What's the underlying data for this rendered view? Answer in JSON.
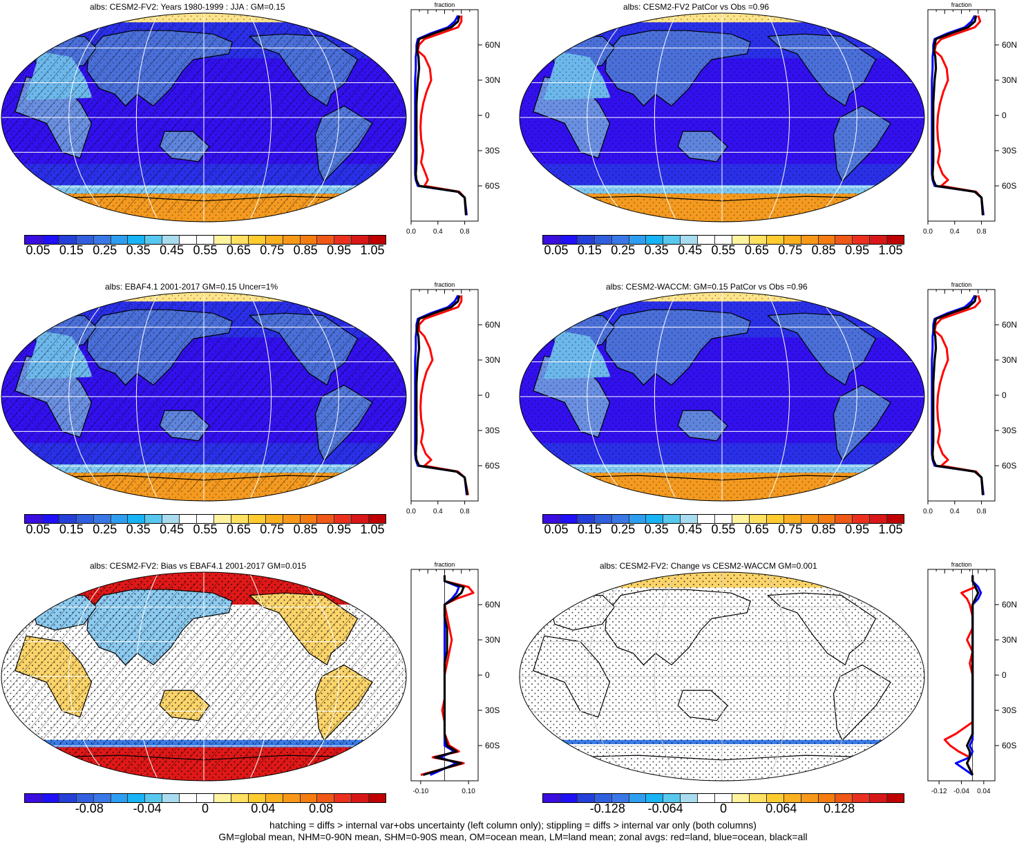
{
  "panels": [
    {
      "title": "albs: CESM2-FV2: Years 1980-1999 : JJA : GM=0.15",
      "kind": "abs",
      "hatch": true,
      "stipple": "light"
    },
    {
      "title": "albs: CESM2-FV2 PatCor vs Obs =0.96",
      "kind": "abs",
      "hatch": false,
      "stipple": "light"
    },
    {
      "title": "albs: EBAF4.1 2001-2017 GM=0.15 Uncer=1%",
      "kind": "abs",
      "hatch": true,
      "stipple": "light"
    },
    {
      "title": "albs: CESM2-WACCM: GM=0.15 PatCor vs Obs =0.96",
      "kind": "abs",
      "hatch": false,
      "stipple": "light"
    },
    {
      "title": "albs: CESM2-FV2: Bias vs EBAF4.1 2001-2017 GM=0.015",
      "kind": "bias",
      "hatch": true,
      "stipple": "heavy"
    },
    {
      "title": "albs: CESM2-FV2: Change vs CESM2-WACCM GM=0.001",
      "kind": "change",
      "hatch": false,
      "stipple": "heavy"
    }
  ],
  "colorbars": {
    "abs": {
      "labels": [
        "0.05",
        "0.15",
        "0.25",
        "0.35",
        "0.45",
        "0.55",
        "0.65",
        "0.75",
        "0.85",
        "0.95",
        "1.05"
      ],
      "colors": [
        "#3a0de0",
        "#2010f5",
        "#2540d8",
        "#3060e0",
        "#3a78e8",
        "#2e9ff0",
        "#18b4f5",
        "#58c8ee",
        "#a8dcee",
        "#ffffff",
        "#ffffff",
        "#fff3a0",
        "#ffe060",
        "#ffcc30",
        "#fbb020",
        "#f89818",
        "#f57c10",
        "#f05818",
        "#eb3020",
        "#d81818",
        "#c00000"
      ]
    },
    "bias": {
      "labels": [
        "-0.08",
        "-0.04",
        "0",
        "0.04",
        "0.08"
      ],
      "colors": [
        "#3a0de0",
        "#2010f5",
        "#2540d8",
        "#3060e0",
        "#3a78e8",
        "#2e9ff0",
        "#18b4f5",
        "#58c8ee",
        "#a8dcee",
        "#ffffff",
        "#ffffff",
        "#fff3a0",
        "#ffe060",
        "#ffcc30",
        "#fbb020",
        "#f89818",
        "#f57c10",
        "#f05818",
        "#eb3020",
        "#d81818",
        "#c00000"
      ]
    },
    "change": {
      "labels": [
        "-0.128",
        "-0.064",
        "0",
        "0.064",
        "0.128"
      ],
      "colors": [
        "#3a0de0",
        "#2010f5",
        "#2540d8",
        "#3060e0",
        "#3a78e8",
        "#2e9ff0",
        "#18b4f5",
        "#58c8ee",
        "#a8dcee",
        "#ffffff",
        "#ffffff",
        "#fff3a0",
        "#ffe060",
        "#ffcc30",
        "#fbb020",
        "#f89818",
        "#f57c10",
        "#f05818",
        "#eb3020",
        "#d81818",
        "#c00000"
      ]
    }
  },
  "zonal": {
    "title": "fraction",
    "lat_labels": [
      "60N",
      "30N",
      "0",
      "30S",
      "60S"
    ],
    "abs_ticks": [
      "0.0",
      "0.4",
      "0.8"
    ],
    "bias_ticks": [
      "-0.10",
      "0.10"
    ],
    "change_ticks": [
      "-0.12",
      "-0.04",
      "0.04"
    ],
    "series_colors": {
      "land": "#ff0000",
      "ocean": "#0000ff",
      "all": "#000000"
    }
  },
  "chart_data": [
    {
      "type": "line",
      "title": "albs: CESM2-FV2: Years 1980-1999 : JJA : GM=0.15",
      "xlabel": "fraction",
      "x_ticks": [
        "0.0",
        "0.4",
        "0.8"
      ],
      "y_ticks": [
        "60N",
        "30N",
        "0",
        "30S",
        "60S"
      ],
      "ylim": [
        -90,
        90
      ],
      "x": [
        -85,
        -70,
        -65,
        -60,
        -55,
        -50,
        -40,
        -30,
        -20,
        -10,
        0,
        10,
        20,
        30,
        40,
        50,
        55,
        60,
        65,
        70,
        75,
        80,
        85
      ],
      "series": [
        {
          "name": "red=land",
          "values": [
            0.82,
            0.8,
            0.72,
            0.2,
            0.25,
            0.22,
            0.15,
            0.18,
            0.15,
            0.14,
            0.15,
            0.18,
            0.23,
            0.3,
            0.28,
            0.2,
            0.1,
            0.12,
            0.2,
            0.45,
            0.7,
            0.75,
            0.75
          ]
        },
        {
          "name": "blue=ocean",
          "values": [
            0.83,
            0.8,
            0.7,
            0.1,
            0.07,
            0.06,
            0.06,
            0.06,
            0.06,
            0.06,
            0.06,
            0.06,
            0.06,
            0.06,
            0.07,
            0.07,
            0.08,
            0.08,
            0.1,
            0.3,
            0.55,
            0.65,
            0.7
          ]
        },
        {
          "name": "black=all",
          "values": [
            0.82,
            0.8,
            0.7,
            0.12,
            0.08,
            0.07,
            0.08,
            0.08,
            0.08,
            0.08,
            0.08,
            0.08,
            0.09,
            0.1,
            0.12,
            0.11,
            0.09,
            0.1,
            0.12,
            0.35,
            0.6,
            0.7,
            0.72
          ]
        }
      ]
    },
    {
      "type": "line",
      "title": "albs: CESM2-FV2 PatCor vs Obs =0.96",
      "xlabel": "fraction",
      "x_ticks": [
        "0.0",
        "0.4",
        "0.8"
      ],
      "y_ticks": [
        "60N",
        "30N",
        "0",
        "30S",
        "60S"
      ],
      "ylim": [
        -90,
        90
      ],
      "x": [
        -85,
        -70,
        -65,
        -60,
        -55,
        -50,
        -40,
        -30,
        -20,
        -10,
        0,
        10,
        20,
        30,
        40,
        50,
        55,
        60,
        65,
        70,
        75,
        80,
        85
      ],
      "series": [
        {
          "name": "red=land",
          "values": [
            0.82,
            0.8,
            0.72,
            0.2,
            0.3,
            0.22,
            0.15,
            0.18,
            0.15,
            0.14,
            0.15,
            0.18,
            0.23,
            0.3,
            0.28,
            0.2,
            0.1,
            0.12,
            0.2,
            0.45,
            0.7,
            0.78,
            0.75
          ]
        },
        {
          "name": "blue=ocean",
          "values": [
            0.83,
            0.8,
            0.7,
            0.1,
            0.07,
            0.06,
            0.06,
            0.06,
            0.06,
            0.06,
            0.06,
            0.06,
            0.06,
            0.06,
            0.07,
            0.07,
            0.08,
            0.08,
            0.1,
            0.3,
            0.55,
            0.65,
            0.7
          ]
        },
        {
          "name": "black=all",
          "values": [
            0.82,
            0.8,
            0.7,
            0.12,
            0.08,
            0.07,
            0.08,
            0.08,
            0.08,
            0.08,
            0.08,
            0.08,
            0.09,
            0.1,
            0.12,
            0.11,
            0.09,
            0.1,
            0.12,
            0.35,
            0.6,
            0.7,
            0.72
          ]
        }
      ]
    },
    {
      "type": "line",
      "title": "albs: EBAF4.1 2001-2017 GM=0.15 Uncer=1%",
      "xlabel": "fraction",
      "x_ticks": [
        "0.0",
        "0.4",
        "0.8"
      ],
      "y_ticks": [
        "60N",
        "30N",
        "0",
        "30S",
        "60S"
      ],
      "ylim": [
        -90,
        90
      ],
      "x": [
        -85,
        -70,
        -65,
        -60,
        -55,
        -50,
        -40,
        -30,
        -20,
        -10,
        0,
        10,
        20,
        30,
        40,
        50,
        55,
        60,
        65,
        70,
        75,
        80,
        85
      ],
      "series": [
        {
          "name": "red=land",
          "values": [
            0.85,
            0.8,
            0.7,
            0.2,
            0.3,
            0.22,
            0.15,
            0.18,
            0.15,
            0.14,
            0.15,
            0.18,
            0.23,
            0.32,
            0.28,
            0.2,
            0.12,
            0.12,
            0.2,
            0.45,
            0.7,
            0.75,
            0.75
          ]
        },
        {
          "name": "blue=ocean",
          "values": [
            0.83,
            0.8,
            0.68,
            0.1,
            0.07,
            0.06,
            0.06,
            0.06,
            0.06,
            0.06,
            0.06,
            0.06,
            0.06,
            0.06,
            0.07,
            0.07,
            0.08,
            0.08,
            0.1,
            0.3,
            0.55,
            0.65,
            0.7
          ]
        },
        {
          "name": "black=all",
          "values": [
            0.84,
            0.8,
            0.68,
            0.12,
            0.08,
            0.07,
            0.08,
            0.08,
            0.08,
            0.08,
            0.08,
            0.08,
            0.09,
            0.1,
            0.12,
            0.11,
            0.09,
            0.1,
            0.12,
            0.35,
            0.6,
            0.7,
            0.72
          ]
        }
      ]
    },
    {
      "type": "line",
      "title": "albs: CESM2-WACCM: GM=0.15 PatCor vs Obs =0.96",
      "xlabel": "fraction",
      "x_ticks": [
        "0.0",
        "0.4",
        "0.8"
      ],
      "y_ticks": [
        "60N",
        "30N",
        "0",
        "30S",
        "60S"
      ],
      "ylim": [
        -90,
        90
      ],
      "x": [
        -85,
        -70,
        -65,
        -60,
        -55,
        -50,
        -40,
        -30,
        -20,
        -10,
        0,
        10,
        20,
        30,
        40,
        50,
        55,
        60,
        65,
        70,
        75,
        80,
        85
      ],
      "series": [
        {
          "name": "red=land",
          "values": [
            0.82,
            0.8,
            0.72,
            0.2,
            0.3,
            0.22,
            0.15,
            0.18,
            0.15,
            0.14,
            0.15,
            0.18,
            0.23,
            0.3,
            0.28,
            0.2,
            0.1,
            0.12,
            0.2,
            0.45,
            0.7,
            0.78,
            0.75
          ]
        },
        {
          "name": "blue=ocean",
          "values": [
            0.83,
            0.8,
            0.7,
            0.1,
            0.07,
            0.06,
            0.06,
            0.06,
            0.06,
            0.06,
            0.06,
            0.06,
            0.06,
            0.06,
            0.07,
            0.07,
            0.08,
            0.08,
            0.1,
            0.3,
            0.55,
            0.65,
            0.7
          ]
        },
        {
          "name": "black=all",
          "values": [
            0.82,
            0.8,
            0.7,
            0.12,
            0.08,
            0.07,
            0.08,
            0.08,
            0.08,
            0.08,
            0.08,
            0.08,
            0.09,
            0.1,
            0.12,
            0.11,
            0.09,
            0.1,
            0.12,
            0.35,
            0.6,
            0.7,
            0.72
          ]
        }
      ]
    },
    {
      "type": "line",
      "title": "albs: CESM2-FV2: Bias vs EBAF4.1 2001-2017 GM=0.015",
      "xlabel": "fraction",
      "x_ticks": [
        "-0.10",
        "0.10"
      ],
      "y_ticks": [
        "60N",
        "30N",
        "0",
        "30S",
        "60S"
      ],
      "ylim": [
        -90,
        90
      ],
      "x": [
        -85,
        -75,
        -70,
        -65,
        -60,
        -50,
        -40,
        -30,
        -20,
        -10,
        0,
        10,
        20,
        30,
        40,
        50,
        60,
        65,
        70,
        75,
        80,
        85
      ],
      "series": [
        {
          "name": "red=land",
          "values": [
            -0.1,
            0.08,
            -0.05,
            0.06,
            0.02,
            0.0,
            0.0,
            -0.01,
            0.0,
            0.0,
            0.0,
            0.01,
            0.02,
            0.03,
            0.02,
            0.01,
            0.0,
            0.05,
            0.12,
            0.1,
            0.0,
            0.0
          ]
        },
        {
          "name": "blue=ocean",
          "values": [
            -0.06,
            0.05,
            -0.02,
            0.04,
            0.0,
            0.0,
            0.0,
            0.0,
            0.0,
            0.0,
            0.0,
            0.0,
            0.0,
            0.0,
            0.0,
            0.0,
            0.0,
            0.03,
            0.05,
            0.06,
            0.0,
            0.0
          ]
        },
        {
          "name": "black=all",
          "values": [
            -0.09,
            0.07,
            -0.04,
            0.05,
            0.01,
            0.0,
            0.0,
            0.0,
            0.0,
            0.0,
            0.0,
            0.0,
            0.01,
            0.01,
            0.01,
            0.0,
            0.0,
            0.04,
            0.07,
            0.08,
            0.0,
            0.0
          ]
        }
      ]
    },
    {
      "type": "line",
      "title": "albs: CESM2-FV2: Change vs CESM2-WACCM GM=0.001",
      "xlabel": "fraction",
      "x_ticks": [
        "-0.12",
        "-0.04",
        "0.04"
      ],
      "y_ticks": [
        "60N",
        "30N",
        "0",
        "30S",
        "60S"
      ],
      "ylim": [
        -90,
        90
      ],
      "x": [
        -85,
        -75,
        -70,
        -65,
        -60,
        -55,
        -50,
        -40,
        -30,
        -20,
        -10,
        0,
        10,
        20,
        30,
        40,
        50,
        60,
        65,
        70,
        75,
        80,
        85
      ],
      "series": [
        {
          "name": "red=land",
          "values": [
            0.0,
            -0.02,
            -0.01,
            -0.05,
            -0.08,
            -0.1,
            -0.06,
            0.0,
            0.0,
            0.0,
            0.0,
            0.0,
            -0.01,
            0.0,
            -0.02,
            0.0,
            0.0,
            -0.01,
            -0.02,
            -0.04,
            0.01,
            0.0,
            0.0
          ]
        },
        {
          "name": "blue=ocean",
          "values": [
            0.0,
            -0.06,
            -0.01,
            0.0,
            -0.01,
            0.0,
            0.0,
            0.0,
            0.0,
            0.0,
            0.0,
            0.0,
            0.0,
            0.0,
            0.0,
            0.0,
            0.0,
            0.0,
            0.02,
            0.03,
            0.02,
            0.0,
            0.0
          ]
        },
        {
          "name": "black=all",
          "values": [
            0.0,
            -0.02,
            -0.01,
            -0.01,
            -0.02,
            -0.01,
            0.0,
            0.0,
            0.0,
            0.0,
            0.0,
            0.0,
            0.0,
            0.0,
            0.0,
            0.0,
            0.0,
            0.0,
            0.01,
            0.02,
            0.01,
            0.0,
            0.0
          ]
        }
      ]
    }
  ],
  "footer": {
    "line1": "hatching = diffs > internal var+obs uncertainty (left column only); stippling = diffs > internal var only (both columns)",
    "line2": "GM=global mean, NHM=0-90N mean, SHM=0-90S mean, OM=ocean mean, LM=land mean; zonal avgs: red=land, blue=ocean, black=all"
  }
}
